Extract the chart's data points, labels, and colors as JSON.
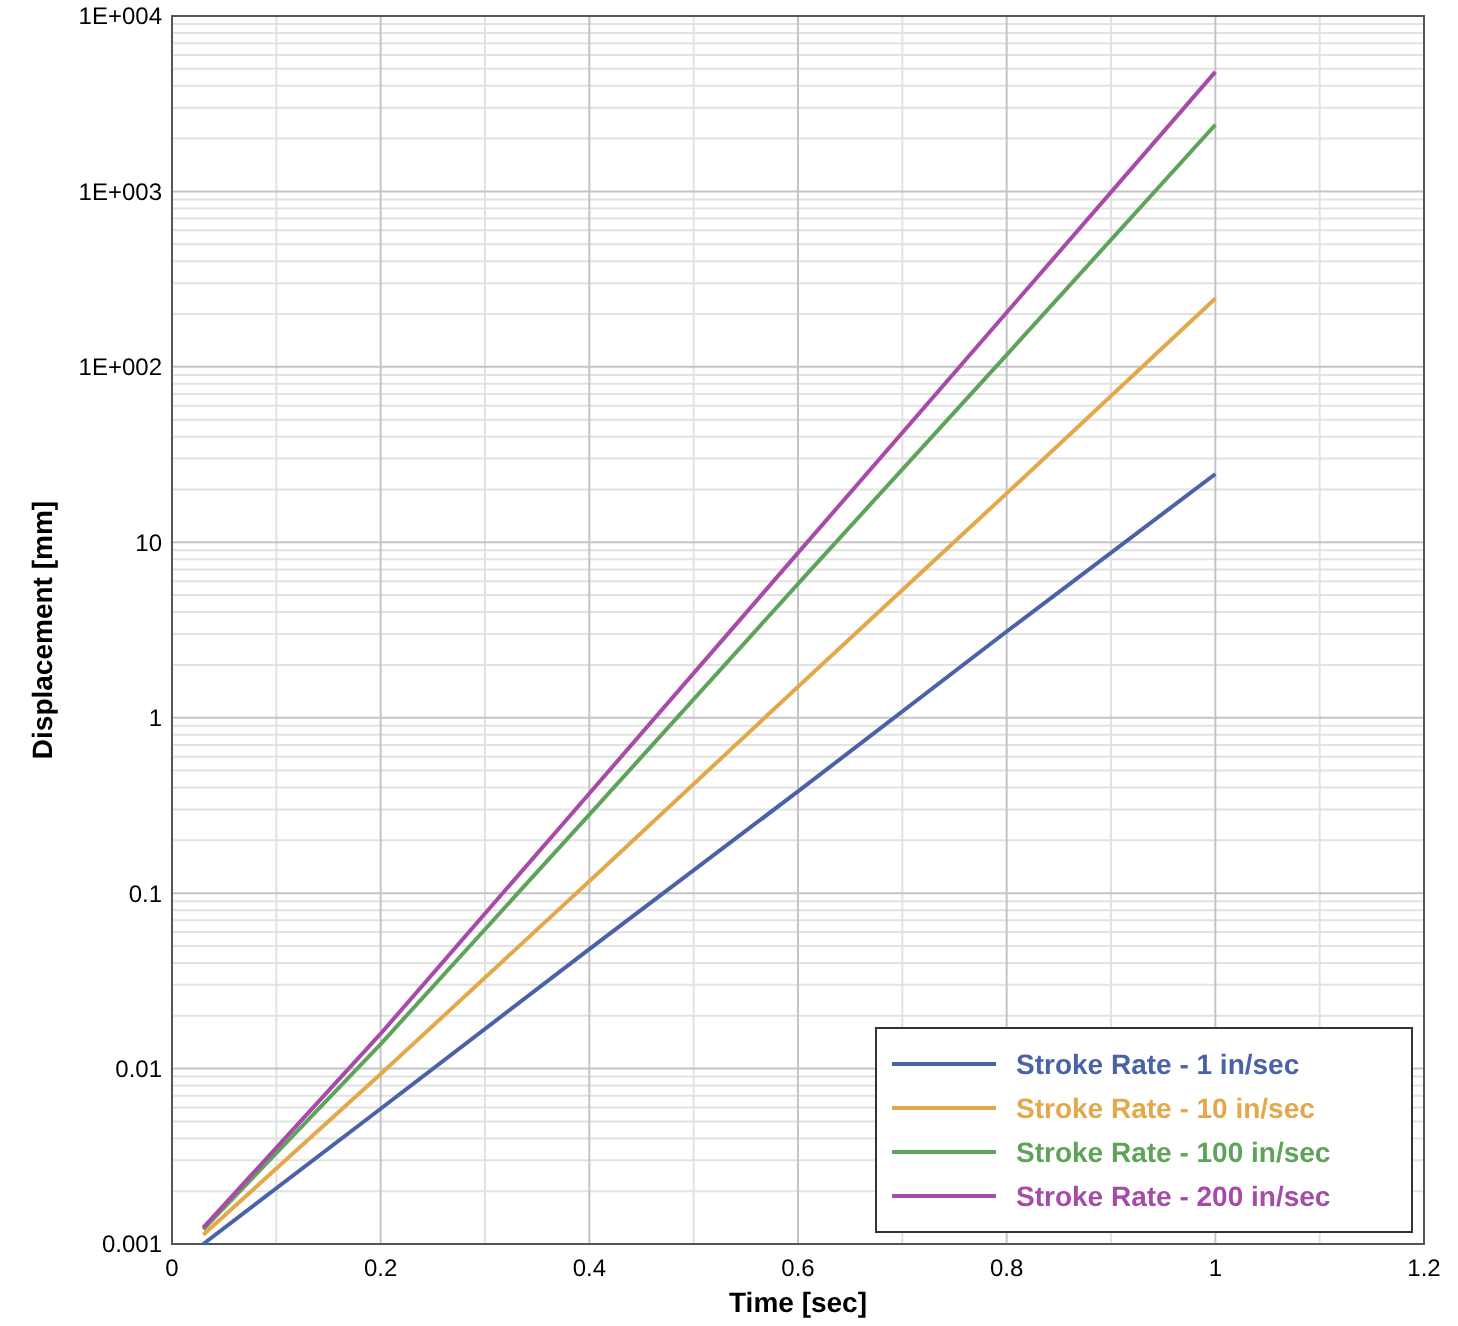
{
  "chart_data": {
    "type": "line",
    "xlabel": "Time [sec]",
    "ylabel": "Displacement [mm]",
    "log": "y",
    "grid": true,
    "legend": "bottom right",
    "line_style": "solid",
    "marker": "none",
    "xlim": [
      0,
      1.2
    ],
    "xticks": [
      0,
      0.2,
      0.4,
      0.6,
      0.8,
      1,
      1.2
    ],
    "ylim": [
      0.001,
      10000
    ],
    "yticks": [
      {
        "value": 0.001,
        "label": "0.001"
      },
      {
        "value": 0.01,
        "label": "0.01"
      },
      {
        "value": 0.1,
        "label": "0.1"
      },
      {
        "value": 1,
        "label": "1"
      },
      {
        "value": 10,
        "label": "10"
      },
      {
        "value": 100,
        "label": "1E+002"
      },
      {
        "value": 1000,
        "label": "1E+003"
      },
      {
        "value": 10000,
        "label": "1E+004"
      }
    ],
    "x": [
      0.03,
      0.2,
      0.4,
      0.6,
      0.8,
      1
    ],
    "series": [
      {
        "name": "Stroke Rate - 1 in/sec",
        "color": "#4a62a8",
        "values": [
          0.001,
          0.0059,
          0.048,
          0.38,
          3.1,
          24.5
        ]
      },
      {
        "name": "Stroke Rate - 10 in/sec",
        "color": "#e3a84a",
        "values": [
          0.00113,
          0.0093,
          0.117,
          1.5,
          19,
          245
        ]
      },
      {
        "name": "Stroke Rate - 100 in/sec",
        "color": "#5fa35a",
        "values": [
          0.00121,
          0.0138,
          0.28,
          5.8,
          117,
          2400
        ]
      },
      {
        "name": "Stroke Rate - 200 in/sec",
        "color": "#a84aa8",
        "values": [
          0.00124,
          0.0158,
          0.37,
          8.7,
          204,
          4800
        ]
      }
    ]
  }
}
